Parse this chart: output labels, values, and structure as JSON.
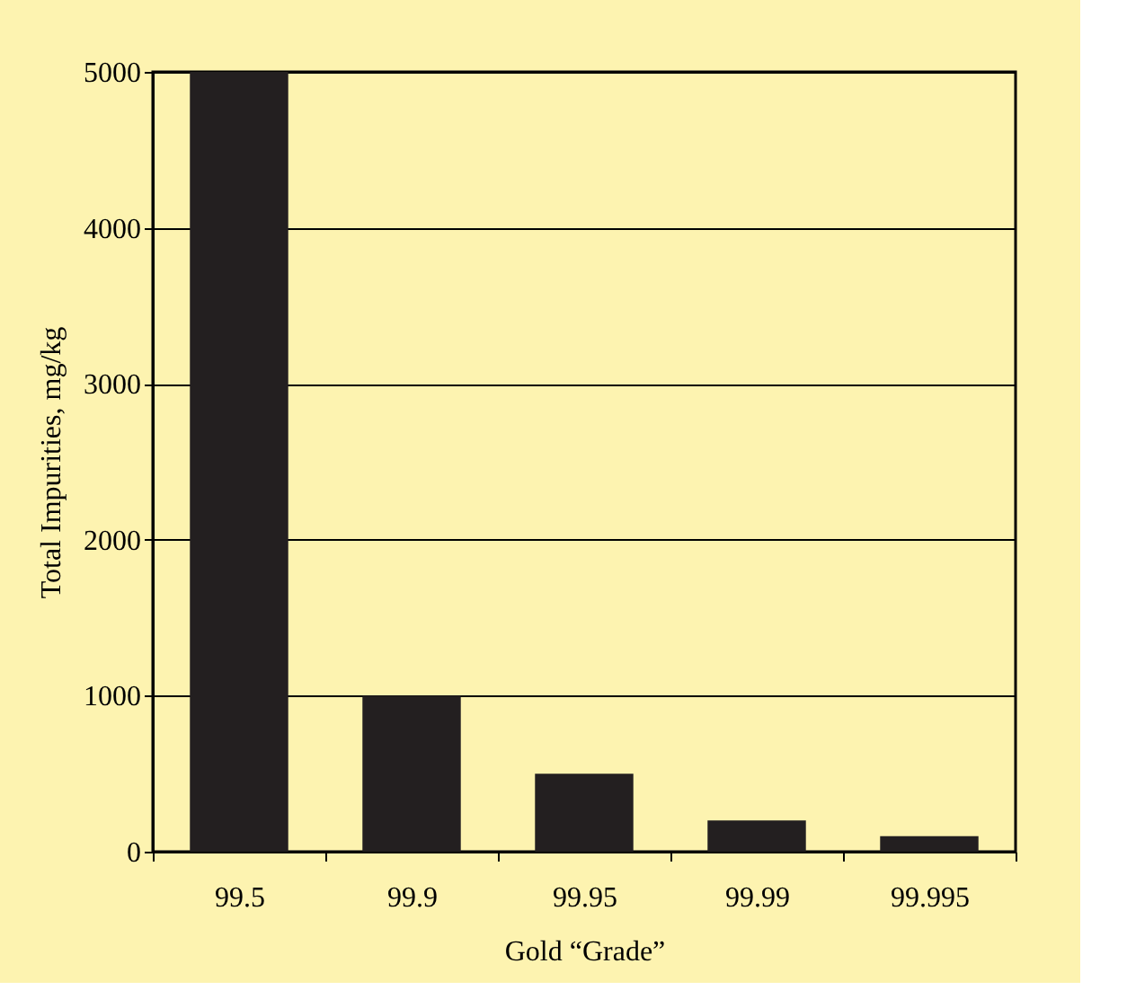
{
  "chart_data": {
    "type": "bar",
    "xlabel": "Gold “Grade”",
    "ylabel": "Total Impurities, mg/kg",
    "categories": [
      "99.5",
      "99.9",
      "99.95",
      "99.99",
      "99.995"
    ],
    "values": [
      5000,
      1000,
      500,
      200,
      100
    ],
    "color": "#231f20",
    "ylim": [
      0,
      5000
    ],
    "yticks": [
      0,
      1000,
      2000,
      3000,
      4000,
      5000
    ],
    "grid": "y"
  }
}
